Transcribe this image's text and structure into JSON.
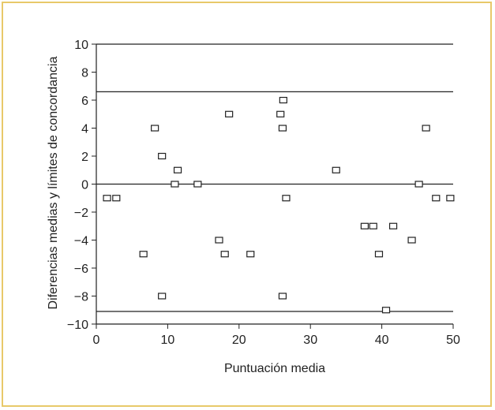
{
  "colors": {
    "border": "#e8c96a",
    "axis": "#222222",
    "marker": "#222222"
  },
  "chart_data": {
    "type": "scatter",
    "xlabel": "Puntuación media",
    "ylabel": "Diferencias medias y límites de concordancia",
    "xlim": [
      0,
      50
    ],
    "ylim": [
      -10,
      10
    ],
    "x_ticks": [
      0,
      10,
      20,
      30,
      40,
      50
    ],
    "y_ticks": [
      -10,
      -8,
      -6,
      -4,
      -2,
      0,
      2,
      4,
      6,
      8,
      10
    ],
    "grid": false,
    "reference_lines": [
      6.6,
      0,
      -9.1
    ],
    "points": [
      {
        "x": 1.5,
        "y": -1
      },
      {
        "x": 2.8,
        "y": -1
      },
      {
        "x": 6.6,
        "y": -5
      },
      {
        "x": 8.2,
        "y": 4
      },
      {
        "x": 9.2,
        "y": 2
      },
      {
        "x": 9.2,
        "y": -8
      },
      {
        "x": 11.0,
        "y": 0
      },
      {
        "x": 11.4,
        "y": 1
      },
      {
        "x": 14.2,
        "y": 0
      },
      {
        "x": 17.2,
        "y": -4
      },
      {
        "x": 18.0,
        "y": -5
      },
      {
        "x": 18.6,
        "y": 5
      },
      {
        "x": 21.6,
        "y": -5
      },
      {
        "x": 25.8,
        "y": 5
      },
      {
        "x": 26.1,
        "y": 4
      },
      {
        "x": 26.2,
        "y": 6
      },
      {
        "x": 26.1,
        "y": -8
      },
      {
        "x": 26.6,
        "y": -1
      },
      {
        "x": 33.6,
        "y": 1
      },
      {
        "x": 37.6,
        "y": -3
      },
      {
        "x": 38.8,
        "y": -3
      },
      {
        "x": 39.6,
        "y": -5
      },
      {
        "x": 40.6,
        "y": -9
      },
      {
        "x": 41.6,
        "y": -3
      },
      {
        "x": 44.2,
        "y": -4
      },
      {
        "x": 45.2,
        "y": 0
      },
      {
        "x": 46.2,
        "y": 4
      },
      {
        "x": 47.6,
        "y": -1
      },
      {
        "x": 49.6,
        "y": -1
      }
    ]
  }
}
